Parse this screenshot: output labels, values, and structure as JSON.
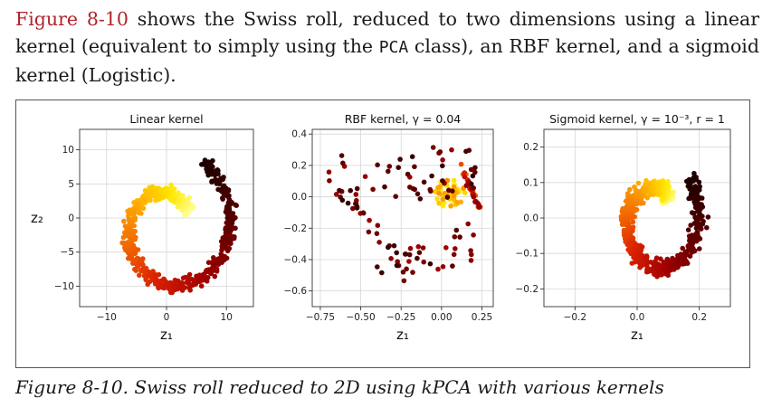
{
  "paragraph": {
    "figure_ref": "Figure 8-10",
    "text_1": " shows the Swiss roll, reduced to two dimensions using a linear kernel (equivalent to simply using the ",
    "code_term": "PCA",
    "text_2": " class), an RBF kernel, and a sigmoid kernel (Logistic)."
  },
  "caption": "Figure 8-10. Swiss roll reduced to 2D using kPCA with various kernels",
  "colormap": [
    "#1a0000",
    "#5a0000",
    "#a00000",
    "#d92000",
    "#f26b00",
    "#ffb000",
    "#ffe800",
    "#ffff99"
  ],
  "chart_data": [
    {
      "type": "scatter",
      "title": "Linear kernel",
      "xlabel": "z₁",
      "ylabel": "z₂",
      "xlim": [
        -14.5,
        14.5
      ],
      "ylim": [
        -13,
        13
      ],
      "xticks": [
        -10,
        0,
        10
      ],
      "xtick_labels": [
        "−10",
        "0",
        "10"
      ],
      "yticks": [
        -10,
        -5,
        0,
        5,
        10
      ],
      "ytick_labels": [
        "−10",
        "−5",
        "0",
        "5",
        "10"
      ],
      "grid": true,
      "shape": "swiss roll spiral, dark center to light outer band"
    },
    {
      "type": "scatter",
      "title": "RBF kernel, γ = 0.04",
      "xlabel": "z₁",
      "ylabel": "",
      "xlim": [
        -0.8,
        0.32
      ],
      "ylim": [
        -0.7,
        0.43
      ],
      "xticks": [
        -0.75,
        -0.5,
        -0.25,
        0.0,
        0.25
      ],
      "xtick_labels": [
        "−0.75",
        "−0.50",
        "−0.25",
        "0.00",
        "0.25"
      ],
      "yticks": [
        -0.6,
        -0.4,
        -0.2,
        0.0,
        0.2,
        0.4
      ],
      "ytick_labels": [
        "−0.6",
        "−0.4",
        "−0.2",
        "0.0",
        "0.2",
        "0.4"
      ],
      "grid": true,
      "shape": "triangular mesh of dark points with a light yellow cluster on the right"
    },
    {
      "type": "scatter",
      "title": "Sigmoid kernel, γ = 10⁻³, r = 1",
      "xlabel": "z₁",
      "ylabel": "",
      "xlim": [
        -0.3,
        0.3
      ],
      "ylim": [
        -0.25,
        0.25
      ],
      "xticks": [
        -0.2,
        0.0,
        0.2
      ],
      "xtick_labels": [
        "−0.2",
        "0.0",
        "0.2"
      ],
      "yticks": [
        -0.2,
        -0.1,
        0.0,
        0.1,
        0.2
      ],
      "ytick_labels": [
        "−0.2",
        "−0.1",
        "0.0",
        "0.1",
        "0.2"
      ],
      "grid": true,
      "shape": "swiss roll spiral, dark cluster at upper right"
    }
  ]
}
